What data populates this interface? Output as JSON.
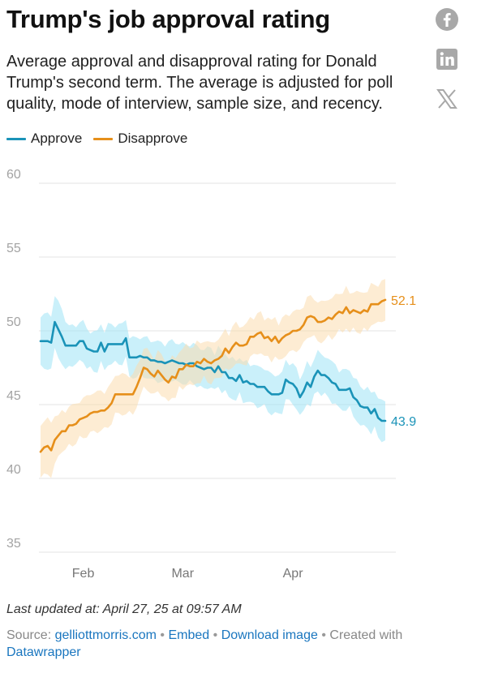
{
  "header": {
    "title": "Trump's job approval rating",
    "subtitle": "Average approval and disapproval rating for Donald Trump's second term. The average is adjusted for poll quality, mode of interview, sample size, and recency."
  },
  "share": {
    "icons": [
      "facebook-icon",
      "linkedin-icon",
      "x-icon"
    ],
    "color": "#a8a8a8"
  },
  "chart_data": {
    "type": "line",
    "title": "",
    "xlabel": "",
    "ylabel": "",
    "x_domain": [
      "2025-01-20",
      "2025-04-27"
    ],
    "x_ticks": [
      {
        "date": "2025-02-01",
        "label": "Feb"
      },
      {
        "date": "2025-03-01",
        "label": "Mar"
      },
      {
        "date": "2025-04-01",
        "label": "Apr"
      }
    ],
    "y_ticks": [
      35,
      40,
      45,
      50,
      55,
      60
    ],
    "ylim": [
      35,
      60
    ],
    "grid": true,
    "legend_position": "top-left",
    "x": [
      "2025-01-20",
      "2025-01-21",
      "2025-01-22",
      "2025-01-23",
      "2025-01-24",
      "2025-01-25",
      "2025-01-26",
      "2025-01-27",
      "2025-01-28",
      "2025-01-29",
      "2025-01-30",
      "2025-01-31",
      "2025-02-01",
      "2025-02-02",
      "2025-02-03",
      "2025-02-04",
      "2025-02-05",
      "2025-02-06",
      "2025-02-07",
      "2025-02-08",
      "2025-02-09",
      "2025-02-10",
      "2025-02-11",
      "2025-02-12",
      "2025-02-13",
      "2025-02-14",
      "2025-02-15",
      "2025-02-16",
      "2025-02-17",
      "2025-02-18",
      "2025-02-19",
      "2025-02-20",
      "2025-02-21",
      "2025-02-22",
      "2025-02-23",
      "2025-02-24",
      "2025-02-25",
      "2025-02-26",
      "2025-02-27",
      "2025-02-28",
      "2025-03-01",
      "2025-03-02",
      "2025-03-03",
      "2025-03-04",
      "2025-03-05",
      "2025-03-06",
      "2025-03-07",
      "2025-03-08",
      "2025-03-09",
      "2025-03-10",
      "2025-03-11",
      "2025-03-12",
      "2025-03-13",
      "2025-03-14",
      "2025-03-15",
      "2025-03-16",
      "2025-03-17",
      "2025-03-18",
      "2025-03-19",
      "2025-03-20",
      "2025-03-21",
      "2025-03-22",
      "2025-03-23",
      "2025-03-24",
      "2025-03-25",
      "2025-03-26",
      "2025-03-27",
      "2025-03-28",
      "2025-03-29",
      "2025-03-30",
      "2025-03-31",
      "2025-04-01",
      "2025-04-02",
      "2025-04-03",
      "2025-04-04",
      "2025-04-05",
      "2025-04-06",
      "2025-04-07",
      "2025-04-08",
      "2025-04-09",
      "2025-04-10",
      "2025-04-11",
      "2025-04-12",
      "2025-04-13",
      "2025-04-14",
      "2025-04-15",
      "2025-04-16",
      "2025-04-17",
      "2025-04-18",
      "2025-04-19",
      "2025-04-20",
      "2025-04-21",
      "2025-04-22",
      "2025-04-23",
      "2025-04-24",
      "2025-04-25",
      "2025-04-26",
      "2025-04-27"
    ],
    "series": [
      {
        "name": "Approve",
        "color": "#1a93b8",
        "band_color": "#9fe3f5",
        "end_label": "43.9",
        "values": [
          49.3,
          49.3,
          49.3,
          49.2,
          50.6,
          50.1,
          49.6,
          49.0,
          49.0,
          49.0,
          49.0,
          49.3,
          49.3,
          48.8,
          48.7,
          48.6,
          48.6,
          49.2,
          48.6,
          49.1,
          49.1,
          49.1,
          49.1,
          49.1,
          49.5,
          48.2,
          48.2,
          48.2,
          48.3,
          48.2,
          48.2,
          48.0,
          48.0,
          47.9,
          47.9,
          47.8,
          47.9,
          48.0,
          47.9,
          47.8,
          47.8,
          47.7,
          47.8,
          47.8,
          47.6,
          47.5,
          47.4,
          47.5,
          47.5,
          47.2,
          47.6,
          47.2,
          47.2,
          46.8,
          46.8,
          46.6,
          47.0,
          46.5,
          46.6,
          46.4,
          46.4,
          46.2,
          46.2,
          46.2,
          45.9,
          45.7,
          45.7,
          45.7,
          45.8,
          46.7,
          46.5,
          46.4,
          46.1,
          45.5,
          45.9,
          46.5,
          46.2,
          46.9,
          47.3,
          47.0,
          47.0,
          46.8,
          46.5,
          46.4,
          46.0,
          46.0,
          46.0,
          46.1,
          45.5,
          45.3,
          44.9,
          44.8,
          44.8,
          44.4,
          44.7,
          44.1,
          43.9,
          43.9
        ]
      },
      {
        "name": "Disapprove",
        "color": "#e68f1a",
        "band_color": "#fbdcae",
        "end_label": "52.1",
        "values": [
          41.8,
          42.1,
          42.2,
          41.9,
          42.6,
          42.9,
          43.2,
          43.2,
          43.6,
          43.6,
          43.7,
          44.0,
          44.1,
          44.2,
          44.4,
          44.5,
          44.5,
          44.6,
          44.6,
          44.8,
          45.1,
          45.7,
          45.7,
          45.7,
          45.7,
          45.7,
          45.7,
          46.2,
          46.8,
          47.5,
          47.4,
          47.1,
          46.9,
          47.3,
          47.0,
          46.7,
          46.5,
          46.9,
          46.8,
          47.4,
          47.4,
          47.7,
          47.6,
          47.6,
          47.9,
          47.8,
          48.1,
          47.9,
          47.8,
          48.0,
          48.1,
          48.3,
          48.8,
          48.5,
          48.9,
          49.2,
          49.0,
          49.0,
          49.1,
          49.6,
          49.6,
          49.8,
          49.9,
          49.5,
          49.6,
          49.3,
          49.6,
          49.2,
          49.5,
          49.7,
          49.8,
          50.0,
          50.0,
          50.1,
          50.4,
          50.9,
          51.0,
          50.9,
          50.6,
          50.6,
          50.7,
          50.9,
          50.8,
          51.1,
          51.3,
          51.2,
          51.6,
          51.2,
          51.4,
          51.3,
          51.2,
          51.4,
          51.3,
          51.8,
          51.8,
          51.8,
          52.0,
          52.1
        ]
      }
    ]
  },
  "footer": {
    "last_updated": "Last updated at: April 27, 25 at 09:57 AM",
    "source_prefix": "Source: ",
    "source_link": "gelliottmorris.com",
    "sep": "•",
    "embed_label": "Embed",
    "download_label": "Download image",
    "created_with_prefix": "Created with",
    "created_with_link": "Datawrapper"
  }
}
